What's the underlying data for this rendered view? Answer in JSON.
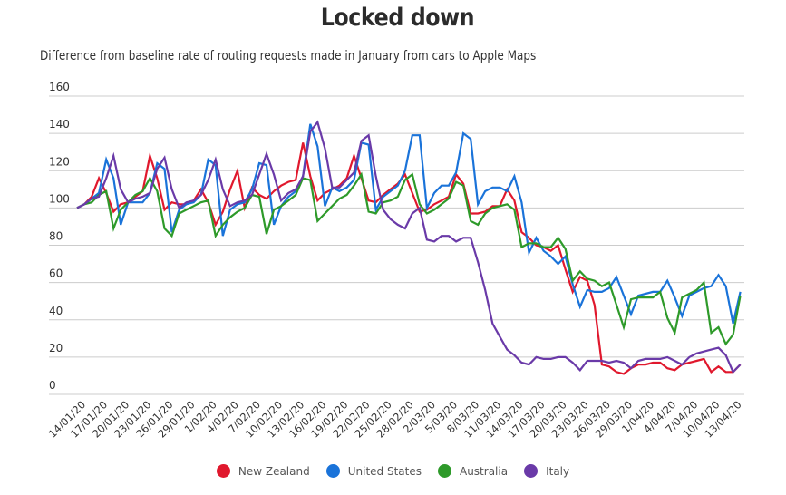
{
  "chart_data": {
    "type": "line",
    "title": "Locked down",
    "subtitle": "Difference from baseline rate of routing requests made in January from cars to Apple Maps",
    "xlabel": "",
    "ylabel": "",
    "ylim": [
      0,
      160
    ],
    "yticks": [
      0,
      20,
      40,
      60,
      80,
      100,
      120,
      140,
      160
    ],
    "grid": true,
    "legend_position": "bottom-center",
    "x": [
      "14/01/20",
      "15/01/20",
      "16/01/20",
      "17/01/20",
      "18/01/20",
      "19/01/20",
      "20/01/20",
      "21/01/20",
      "22/01/20",
      "23/01/20",
      "24/01/20",
      "25/01/20",
      "26/01/20",
      "27/01/20",
      "28/01/20",
      "29/01/20",
      "30/01/20",
      "31/01/20",
      "1/02/20",
      "2/02/20",
      "3/02/20",
      "4/02/20",
      "5/02/20",
      "6/02/20",
      "7/02/20",
      "8/02/20",
      "9/02/20",
      "10/02/20",
      "11/02/20",
      "12/02/20",
      "13/02/20",
      "14/02/20",
      "15/02/20",
      "16/02/20",
      "17/02/20",
      "18/02/20",
      "19/02/20",
      "20/02/20",
      "21/02/20",
      "22/02/20",
      "23/02/20",
      "24/02/20",
      "25/02/20",
      "26/02/20",
      "27/02/20",
      "28/02/20",
      "29/02/20",
      "1/03/20",
      "2/03/20",
      "3/03/20",
      "4/03/20",
      "5/03/20",
      "6/03/20",
      "7/03/20",
      "8/03/20",
      "9/03/20",
      "10/03/20",
      "11/03/20",
      "12/03/20",
      "13/03/20",
      "14/03/20",
      "15/03/20",
      "16/03/20",
      "17/03/20",
      "18/03/20",
      "19/03/20",
      "20/03/20",
      "21/03/20",
      "22/03/20",
      "23/03/20",
      "24/03/20",
      "25/03/20",
      "26/03/20",
      "27/03/20",
      "28/03/20",
      "29/03/20",
      "30/03/20",
      "31/03/20",
      "1/04/20",
      "2/04/20",
      "3/04/20",
      "4/04/20",
      "5/04/20",
      "6/04/20",
      "7/04/20",
      "8/04/20",
      "9/04/20",
      "10/04/20",
      "11/04/20",
      "12/04/20",
      "13/04/20",
      "14/04/20"
    ],
    "xtick_labels": [
      "14/01/20",
      "17/01/20",
      "20/01/20",
      "23/01/20",
      "26/01/20",
      "29/01/20",
      "1/02/20",
      "4/02/20",
      "7/02/20",
      "10/02/20",
      "13/02/20",
      "16/02/20",
      "19/02/20",
      "22/02/20",
      "25/02/20",
      "28/02/20",
      "2/03/20",
      "5/03/20",
      "8/03/20",
      "11/03/20",
      "14/03/20",
      "17/03/20",
      "20/03/20",
      "23/03/20",
      "26/03/20",
      "29/03/20",
      "1/04/20",
      "4/04/20",
      "7/04/20",
      "10/04/20",
      "13/04/20"
    ],
    "series": [
      {
        "name": "New Zealand",
        "color": "#e0182d",
        "values": [
          100,
          102,
          106,
          116,
          108,
          98,
          102,
          103,
          106,
          109,
          128,
          116,
          99,
          103,
          102,
          102,
          104,
          110,
          103,
          91,
          98,
          110,
          120,
          100,
          111,
          107,
          105,
          109,
          112,
          114,
          115,
          135,
          117,
          104,
          108,
          110,
          112,
          116,
          128,
          116,
          104,
          103,
          107,
          110,
          113,
          118,
          108,
          98,
          99,
          102,
          104,
          106,
          118,
          113,
          97,
          97,
          98,
          101,
          101,
          110,
          104,
          87,
          84,
          80,
          79,
          77,
          80,
          67,
          55,
          63,
          61,
          48,
          16,
          15,
          12,
          11,
          14,
          16,
          16,
          17,
          17,
          14,
          13,
          16,
          17,
          18,
          19,
          12,
          15,
          12,
          12,
          16
        ]
      },
      {
        "name": "United States",
        "color": "#1a73d9",
        "values": [
          100,
          102,
          105,
          108,
          126,
          116,
          91,
          103,
          103,
          103,
          108,
          124,
          121,
          87,
          99,
          102,
          103,
          107,
          126,
          123,
          85,
          99,
          102,
          103,
          110,
          124,
          123,
          91,
          101,
          106,
          109,
          117,
          145,
          133,
          101,
          111,
          109,
          111,
          115,
          135,
          134,
          99,
          106,
          109,
          112,
          120,
          139,
          139,
          100,
          108,
          112,
          112,
          119,
          140,
          137,
          102,
          109,
          111,
          111,
          109,
          117,
          103,
          76,
          84,
          77,
          74,
          70,
          74,
          59,
          47,
          56,
          55,
          55,
          57,
          63,
          53,
          43,
          53,
          54,
          55,
          55,
          61,
          52,
          42,
          53,
          55,
          57,
          58,
          64,
          58,
          38,
          55
        ]
      },
      {
        "name": "Australia",
        "color": "#2e9a2a",
        "values": [
          100,
          102,
          103,
          107,
          109,
          89,
          99,
          103,
          107,
          109,
          116,
          109,
          89,
          85,
          97,
          99,
          101,
          103,
          104,
          85,
          91,
          95,
          98,
          100,
          107,
          106,
          86,
          99,
          101,
          104,
          107,
          116,
          115,
          93,
          97,
          101,
          105,
          107,
          112,
          118,
          98,
          97,
          103,
          104,
          106,
          115,
          118,
          102,
          97,
          99,
          102,
          105,
          114,
          112,
          93,
          91,
          97,
          100,
          101,
          102,
          99,
          79,
          81,
          81,
          79,
          79,
          84,
          78,
          61,
          66,
          62,
          61,
          58,
          60,
          48,
          36,
          51,
          52,
          52,
          52,
          55,
          41,
          33,
          52,
          54,
          56,
          60,
          33,
          36,
          27,
          32,
          53
        ]
      },
      {
        "name": "Italy",
        "color": "#6a3aa8",
        "values": [
          100,
          102,
          105,
          106,
          116,
          128,
          110,
          103,
          105,
          106,
          108,
          121,
          127,
          110,
          100,
          103,
          104,
          107,
          115,
          126,
          110,
          101,
          103,
          104,
          107,
          118,
          129,
          118,
          104,
          108,
          110,
          117,
          141,
          146,
          132,
          111,
          111,
          115,
          119,
          136,
          139,
          117,
          99,
          94,
          91,
          89,
          97,
          100,
          83,
          82,
          85,
          85,
          82,
          84,
          84,
          71,
          56,
          38,
          31,
          24,
          21,
          17,
          16,
          20,
          19,
          19,
          20,
          20,
          17,
          13,
          18,
          18,
          18,
          17,
          18,
          17,
          14,
          18,
          19,
          19,
          19,
          20,
          18,
          16,
          20,
          22,
          23,
          24,
          25,
          21,
          12,
          16
        ]
      }
    ]
  }
}
